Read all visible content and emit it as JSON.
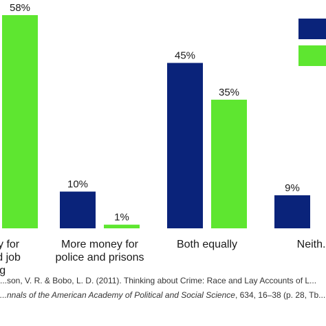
{
  "chart_data": {
    "type": "bar",
    "categories": [
      [
        "...ney for",
        "...and job",
        "...g"
      ],
      [
        "More money for",
        "police and prisons"
      ],
      [
        "Both equally"
      ],
      [
        "Neith..."
      ]
    ],
    "series": [
      {
        "color": "#0a237a",
        "values": [
          null,
          10,
          45,
          9
        ],
        "labels": [
          null,
          "10%",
          "45%",
          "9%"
        ]
      },
      {
        "color": "#5ee630",
        "values": [
          58,
          1,
          35,
          null
        ],
        "labels": [
          "58%",
          "1%",
          "35%",
          null
        ]
      }
    ],
    "ylim": [
      0,
      60
    ],
    "grid": false,
    "legend": "top-right"
  },
  "source": {
    "line1": "...son, V. R. & Bobo, L. D. (2011). Thinking about Crime: Race and Lay Accounts of L...",
    "line2_italic": "...nnals of the American Academy of Political and Social Science",
    "line2_rest": ", 634, 16–38 (p. 28, Tb..."
  }
}
